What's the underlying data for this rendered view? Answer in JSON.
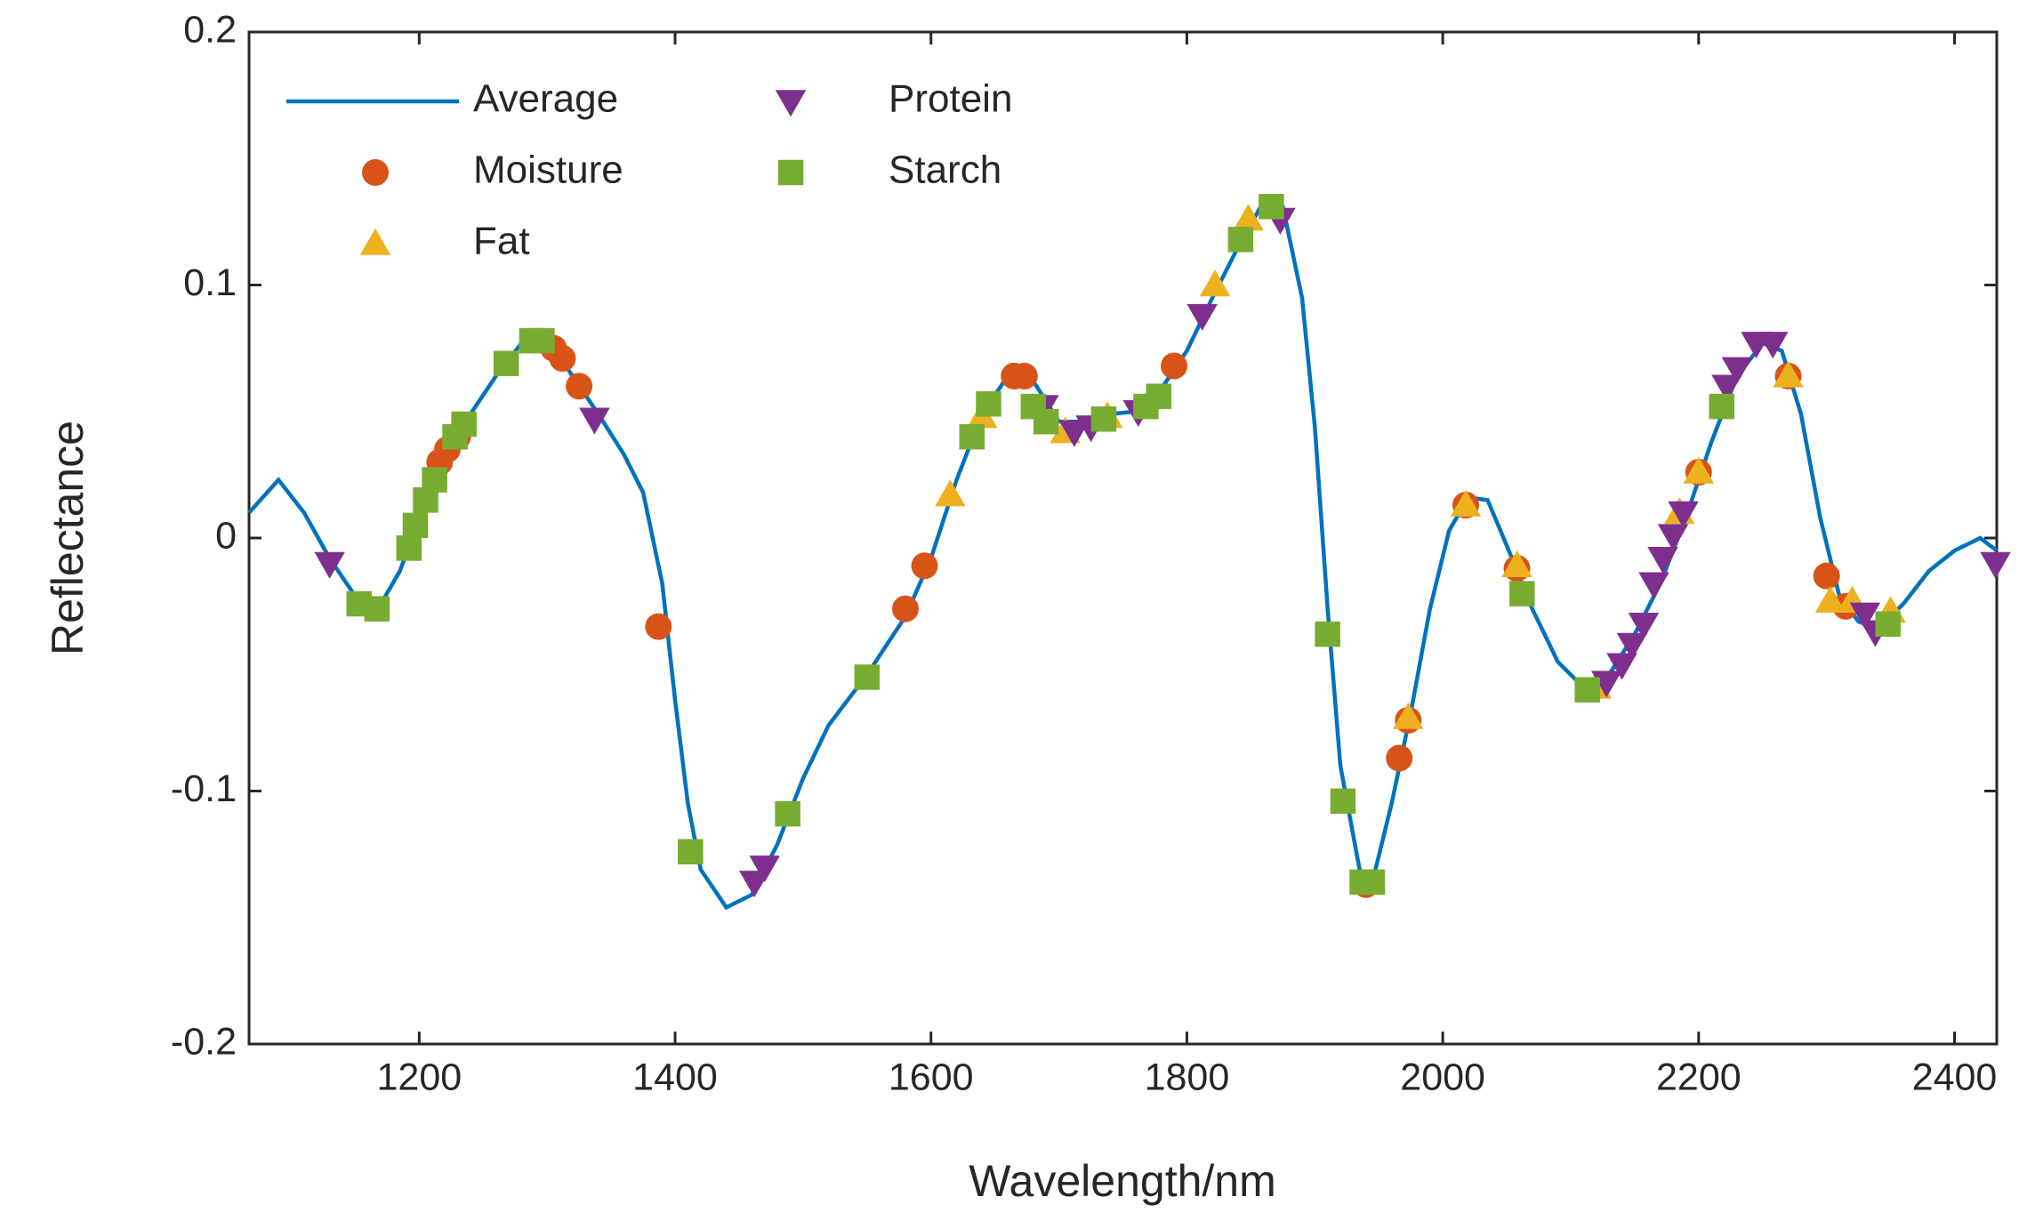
{
  "chart_data": {
    "type": "line",
    "xlabel": "Wavelength/nm",
    "ylabel": "Reflectance",
    "xlim": [
      1067,
      2433
    ],
    "ylim": [
      -0.2,
      0.2
    ],
    "xticks": [
      1200,
      1400,
      1600,
      1800,
      2000,
      2200,
      2400
    ],
    "yticks": [
      -0.2,
      -0.1,
      0,
      0.1,
      0.2
    ],
    "legend": "upper left",
    "series": [
      {
        "name": "Average",
        "color": "#0072bd",
        "marker": "none",
        "x": [
          1067,
          1090,
          1110,
          1130,
          1150,
          1170,
          1185,
          1200,
          1220,
          1240,
          1260,
          1280,
          1300,
          1320,
          1340,
          1360,
          1375,
          1390,
          1400,
          1410,
          1420,
          1440,
          1460,
          1480,
          1500,
          1520,
          1550,
          1580,
          1600,
          1620,
          1640,
          1660,
          1680,
          1700,
          1720,
          1740,
          1760,
          1780,
          1800,
          1820,
          1840,
          1860,
          1875,
          1890,
          1900,
          1910,
          1920,
          1935,
          1945,
          1960,
          1975,
          1990,
          2005,
          2020,
          2035,
          2050,
          2070,
          2090,
          2110,
          2130,
          2150,
          2170,
          2190,
          2210,
          2230,
          2250,
          2265,
          2280,
          2295,
          2310,
          2325,
          2340,
          2360,
          2380,
          2400,
          2420,
          2433
        ],
        "values": [
          0.01,
          0.023,
          0.01,
          -0.008,
          -0.023,
          -0.026,
          -0.013,
          0.008,
          0.033,
          0.049,
          0.064,
          0.077,
          0.078,
          0.064,
          0.049,
          0.033,
          0.018,
          -0.018,
          -0.064,
          -0.105,
          -0.131,
          -0.146,
          -0.141,
          -0.121,
          -0.095,
          -0.074,
          -0.054,
          -0.031,
          -0.008,
          0.023,
          0.049,
          0.064,
          0.062,
          0.046,
          0.046,
          0.049,
          0.05,
          0.059,
          0.074,
          0.095,
          0.115,
          0.133,
          0.131,
          0.095,
          0.044,
          -0.028,
          -0.09,
          -0.131,
          -0.136,
          -0.105,
          -0.069,
          -0.028,
          0.003,
          0.016,
          0.015,
          -0.003,
          -0.028,
          -0.049,
          -0.059,
          -0.054,
          -0.038,
          -0.018,
          0.008,
          0.038,
          0.064,
          0.077,
          0.074,
          0.049,
          0.008,
          -0.023,
          -0.033,
          -0.036,
          -0.026,
          -0.013,
          -0.005,
          0.0,
          -0.005
        ]
      },
      {
        "name": "Moisture",
        "color": "#d95319",
        "marker": "circle",
        "x": [
          1216,
          1222,
          1230,
          1305,
          1312,
          1325,
          1387,
          1580,
          1595,
          1665,
          1673,
          1790,
          1940,
          1966,
          1973,
          2018,
          2058,
          2200,
          2270,
          2300,
          2315
        ],
        "values": [
          0.03,
          0.035,
          0.04,
          0.075,
          0.071,
          0.06,
          -0.035,
          -0.028,
          -0.011,
          0.064,
          0.064,
          0.068,
          -0.137,
          -0.087,
          -0.072,
          0.013,
          -0.012,
          0.026,
          0.064,
          -0.015,
          -0.027
        ]
      },
      {
        "name": "Fat",
        "color": "#edb120",
        "marker": "triangle-up",
        "x": [
          1615,
          1640,
          1705,
          1738,
          1822,
          1848,
          1973,
          2018,
          2058,
          2120,
          2185,
          2200,
          2270,
          2303,
          2320,
          2350
        ],
        "values": [
          0.017,
          0.048,
          0.042,
          0.048,
          0.1,
          0.126,
          -0.071,
          0.013,
          -0.011,
          -0.059,
          0.01,
          0.026,
          0.064,
          -0.025,
          -0.025,
          -0.029
        ]
      },
      {
        "name": "Protein",
        "color": "#7e2f8e",
        "marker": "triangle-down",
        "x": [
          1130,
          1337,
          1462,
          1470,
          1688,
          1712,
          1725,
          1762,
          1812,
          1873,
          2128,
          2140,
          2148,
          2157,
          2165,
          2172,
          2180,
          2188,
          2222,
          2230,
          2245,
          2258,
          2330,
          2338,
          2432
        ],
        "values": [
          -0.01,
          0.047,
          -0.136,
          -0.13,
          0.052,
          0.042,
          0.044,
          0.05,
          0.088,
          0.126,
          -0.057,
          -0.05,
          -0.042,
          -0.034,
          -0.018,
          -0.008,
          0.001,
          0.01,
          0.06,
          0.067,
          0.077,
          0.077,
          -0.03,
          -0.037,
          -0.01
        ]
      },
      {
        "name": "Starch",
        "color": "#77ac30",
        "marker": "square",
        "x": [
          1153,
          1167,
          1192,
          1197,
          1205,
          1212,
          1228,
          1235,
          1268,
          1288,
          1296,
          1412,
          1488,
          1550,
          1632,
          1645,
          1680,
          1690,
          1735,
          1768,
          1778,
          1842,
          1866,
          1910,
          1922,
          1937,
          1945,
          2062,
          2113,
          2218,
          2348
        ],
        "values": [
          -0.026,
          -0.028,
          -0.004,
          0.005,
          0.015,
          0.023,
          0.04,
          0.045,
          0.069,
          0.078,
          0.078,
          -0.124,
          -0.109,
          -0.055,
          0.04,
          0.053,
          0.052,
          0.046,
          0.047,
          0.052,
          0.056,
          0.118,
          0.131,
          -0.038,
          -0.104,
          -0.136,
          -0.136,
          -0.022,
          -0.06,
          0.052,
          -0.034
        ]
      }
    ]
  }
}
